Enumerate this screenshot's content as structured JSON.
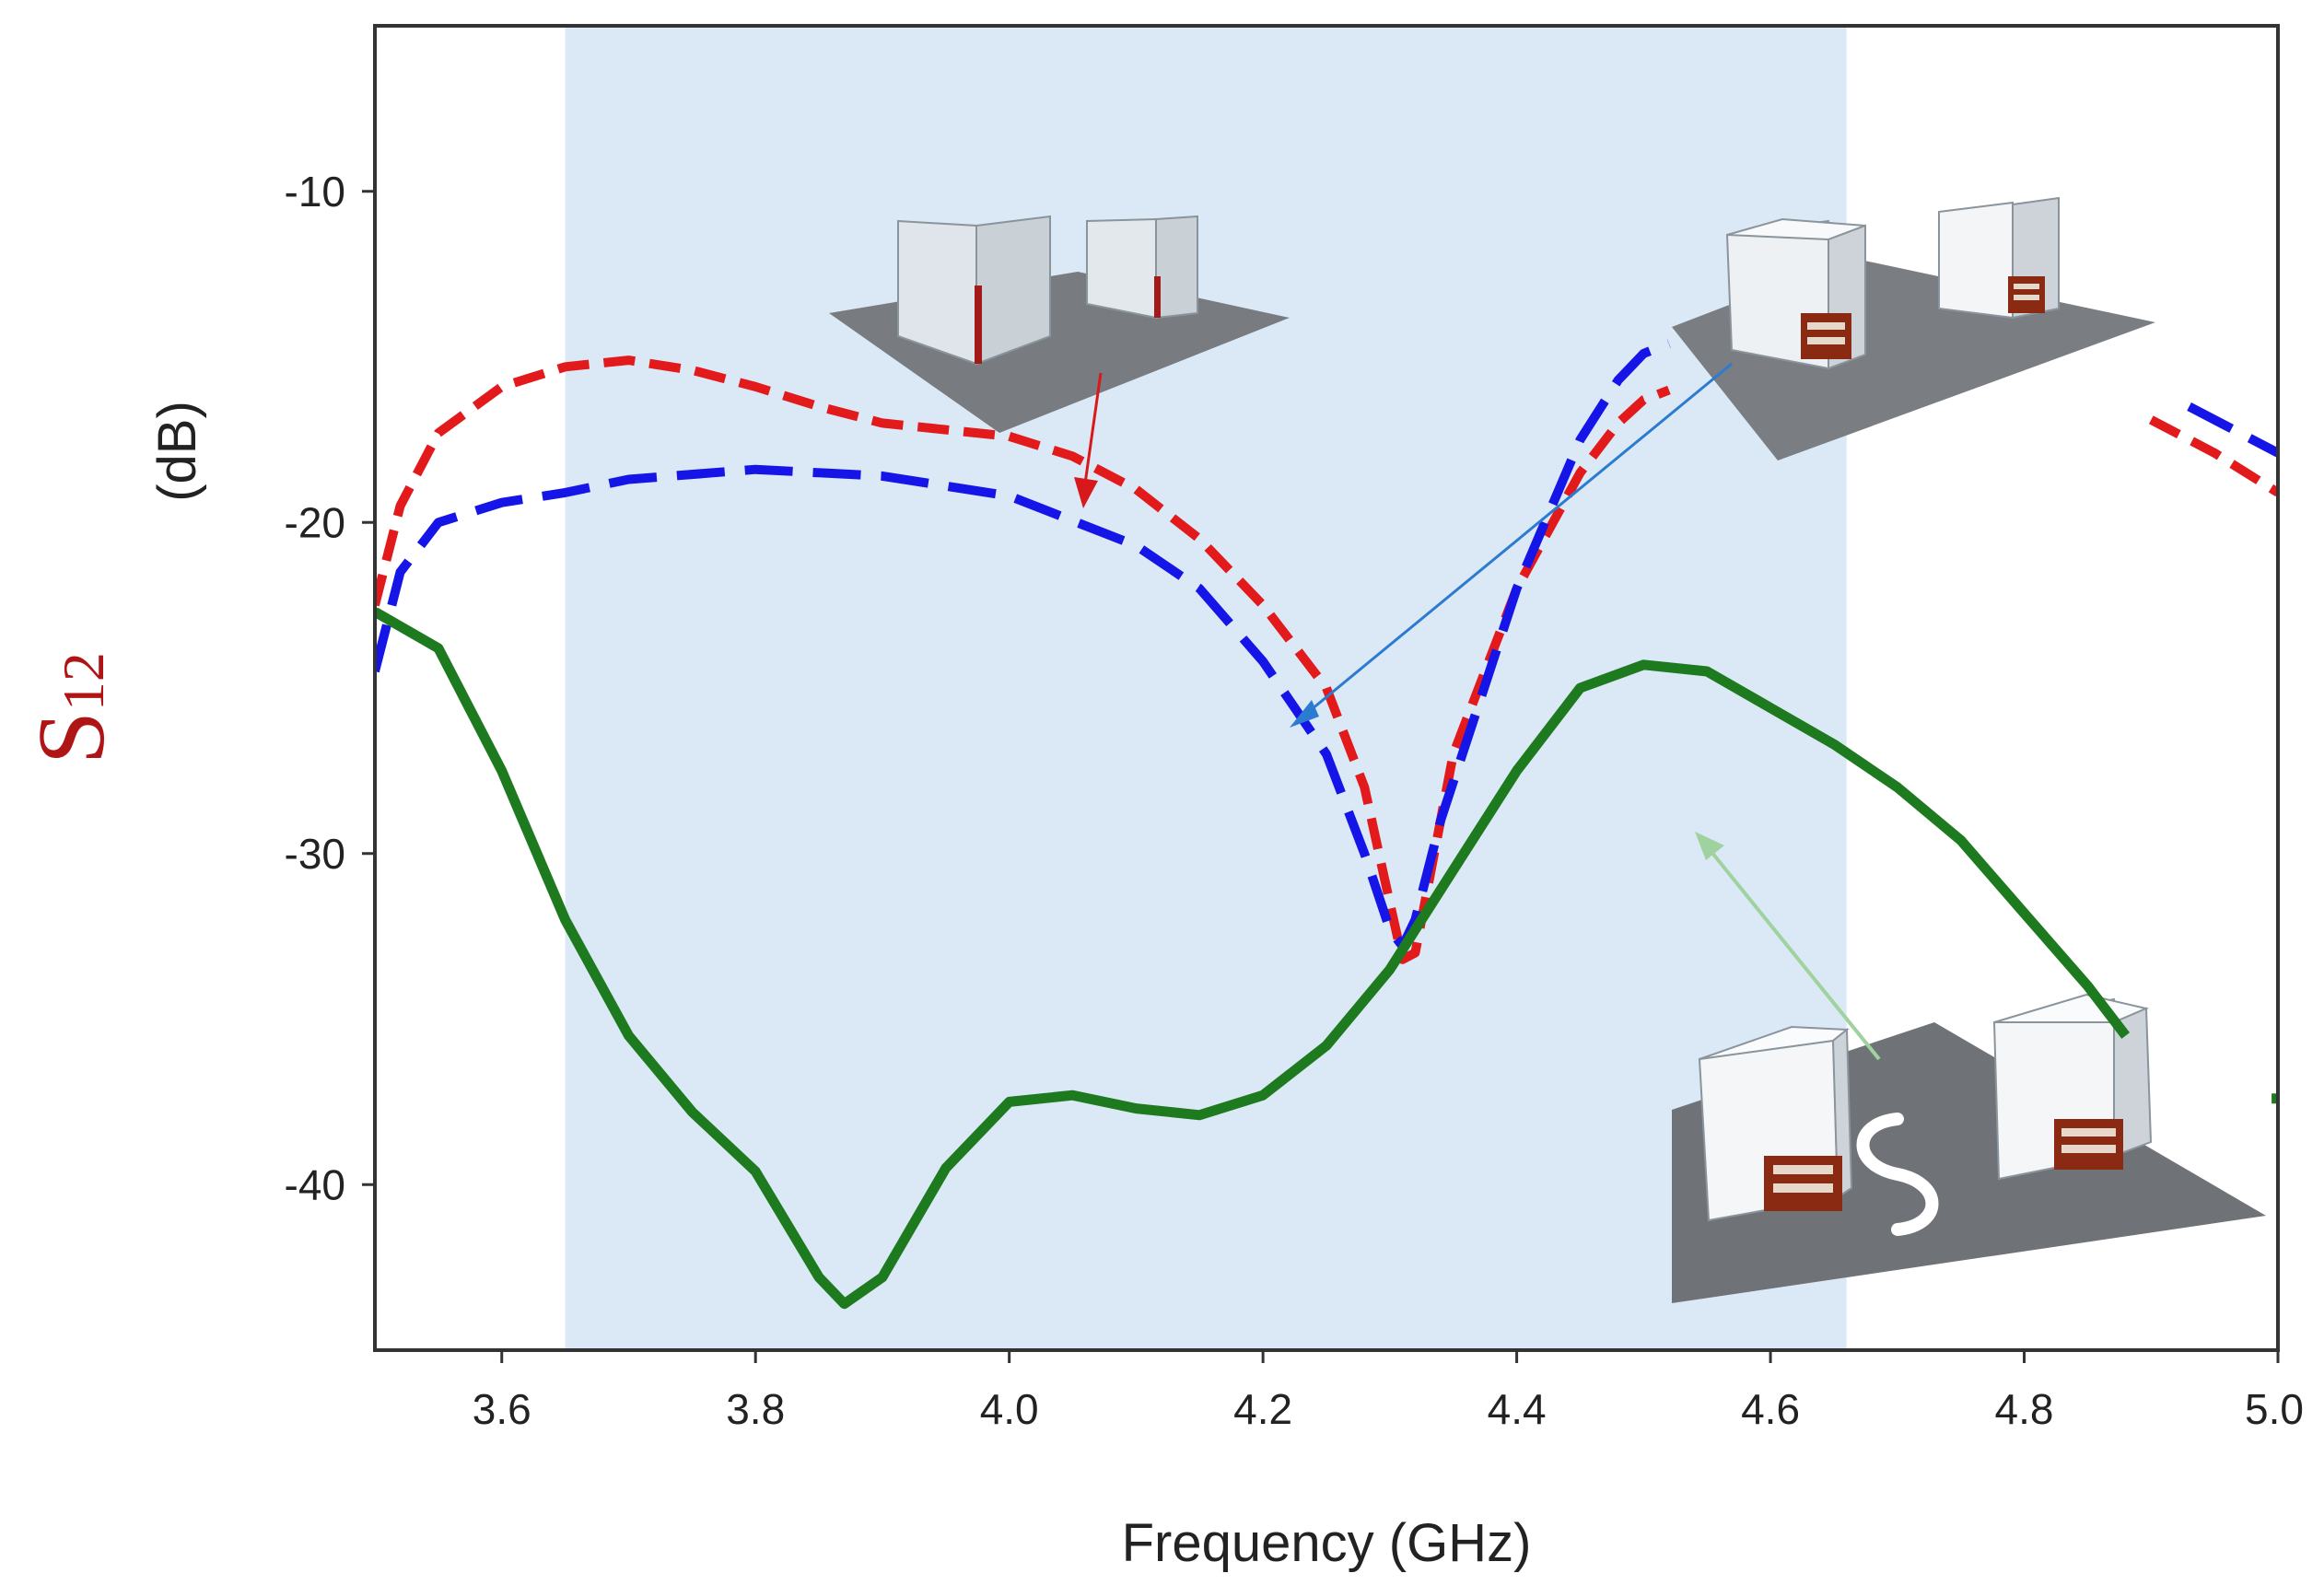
{
  "chart_data": {
    "type": "line",
    "xlabel": "Frequency (GHz)",
    "ylabel": {
      "symbol": "S",
      "subscript": "12",
      "unit": "(dB)"
    },
    "xlim": [
      3.5,
      5.0
    ],
    "ylim": [
      -45,
      -5
    ],
    "x_ticks": [
      "3.6",
      "3.8",
      "4.0",
      "4.2",
      "4.4",
      "4.6",
      "4.8",
      "5.0"
    ],
    "x_tick_values": [
      3.6,
      3.8,
      4.0,
      4.2,
      4.4,
      4.6,
      4.8,
      5.0
    ],
    "y_ticks": [
      "-10",
      "-20",
      "-30",
      "-40"
    ],
    "y_tick_values": [
      -10,
      -20,
      -30,
      -40
    ],
    "grid": false,
    "highlight_band": {
      "x": [
        3.65,
        4.66
      ],
      "color": "#dbe9f6"
    },
    "series": [
      {
        "color": "#e31a1c",
        "style": "dashed",
        "segments": [
          [
            [
              3.5,
              -22.5
            ],
            [
              3.52,
              -19.5
            ],
            [
              3.55,
              -17.3
            ],
            [
              3.6,
              -15.9
            ],
            [
              3.65,
              -15.3
            ],
            [
              3.7,
              -15.1
            ],
            [
              3.75,
              -15.4
            ],
            [
              3.8,
              -15.9
            ],
            [
              3.85,
              -16.5
            ],
            [
              3.9,
              -17.0
            ],
            [
              3.95,
              -17.2
            ],
            [
              4.0,
              -17.4
            ],
            [
              4.05,
              -18.0
            ],
            [
              4.1,
              -19.0
            ],
            [
              4.15,
              -20.5
            ],
            [
              4.2,
              -22.5
            ],
            [
              4.25,
              -25.0
            ],
            [
              4.28,
              -28.0
            ],
            [
              4.3,
              -31.5
            ],
            [
              4.31,
              -33.2
            ],
            [
              4.32,
              -33.0
            ],
            [
              4.33,
              -31.0
            ],
            [
              4.35,
              -27.0
            ],
            [
              4.4,
              -22.0
            ],
            [
              4.45,
              -18.5
            ],
            [
              4.48,
              -17.0
            ],
            [
              4.5,
              -16.3
            ],
            [
              4.52,
              -16.0
            ]
          ],
          [
            [
              4.9,
              -16.9
            ],
            [
              4.95,
              -17.9
            ],
            [
              5.0,
              -19.1
            ]
          ]
        ]
      },
      {
        "color": "#1515e8",
        "style": "dashed",
        "segments": [
          [
            [
              3.5,
              -24.5
            ],
            [
              3.52,
              -21.5
            ],
            [
              3.55,
              -20.0
            ],
            [
              3.6,
              -19.4
            ],
            [
              3.65,
              -19.1
            ],
            [
              3.7,
              -18.7
            ],
            [
              3.8,
              -18.4
            ],
            [
              3.9,
              -18.6
            ],
            [
              4.0,
              -19.2
            ],
            [
              4.1,
              -20.7
            ],
            [
              4.15,
              -22.0
            ],
            [
              4.2,
              -24.2
            ],
            [
              4.25,
              -27.0
            ],
            [
              4.28,
              -30.0
            ],
            [
              4.3,
              -32.3
            ],
            [
              4.31,
              -32.8
            ],
            [
              4.32,
              -32.0
            ],
            [
              4.34,
              -29.0
            ],
            [
              4.37,
              -25.5
            ],
            [
              4.4,
              -22.0
            ],
            [
              4.45,
              -17.5
            ],
            [
              4.48,
              -15.7
            ],
            [
              4.5,
              -14.9
            ],
            [
              4.52,
              -14.6
            ]
          ],
          [
            [
              4.93,
              -16.5
            ],
            [
              4.97,
              -17.3
            ],
            [
              5.0,
              -17.9
            ]
          ]
        ]
      },
      {
        "color": "#1e7a1e",
        "style": "solid",
        "segments": [
          [
            [
              3.5,
              -22.7
            ],
            [
              3.55,
              -23.8
            ],
            [
              3.6,
              -27.5
            ],
            [
              3.65,
              -32.0
            ],
            [
              3.7,
              -35.5
            ],
            [
              3.75,
              -37.8
            ],
            [
              3.8,
              -39.6
            ],
            [
              3.85,
              -42.8
            ],
            [
              3.87,
              -43.6
            ],
            [
              3.9,
              -42.8
            ],
            [
              3.95,
              -39.5
            ],
            [
              4.0,
              -37.5
            ],
            [
              4.05,
              -37.3
            ],
            [
              4.1,
              -37.7
            ],
            [
              4.15,
              -37.9
            ],
            [
              4.2,
              -37.3
            ],
            [
              4.25,
              -35.8
            ],
            [
              4.3,
              -33.5
            ],
            [
              4.35,
              -30.5
            ],
            [
              4.4,
              -27.5
            ],
            [
              4.45,
              -25.0
            ],
            [
              4.5,
              -24.3
            ],
            [
              4.55,
              -24.5
            ],
            [
              4.6,
              -25.6
            ],
            [
              4.65,
              -26.7
            ],
            [
              4.7,
              -28.0
            ],
            [
              4.75,
              -29.6
            ],
            [
              4.8,
              -31.8
            ],
            [
              4.85,
              -34.0
            ],
            [
              4.88,
              -35.5
            ]
          ],
          [
            [
              4.995,
              -37.4
            ],
            [
              5.0,
              -37.4
            ]
          ]
        ]
      }
    ]
  }
}
